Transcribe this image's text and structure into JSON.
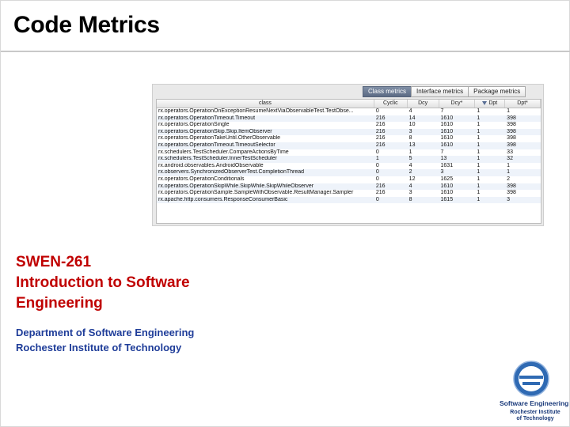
{
  "slide": {
    "title": "Code Metrics",
    "course_lines": [
      "SWEN-261",
      "Introduction to Software",
      "Engineering"
    ],
    "dept_lines": [
      "Department of Software Engineering",
      "Rochester Institute of Technology"
    ]
  },
  "metrics": {
    "tabs": [
      {
        "label": "Class metrics",
        "active": true
      },
      {
        "label": "Interface metrics",
        "active": false
      },
      {
        "label": "Package metrics",
        "active": false
      }
    ],
    "columns": [
      "class",
      "Cyclic",
      "Dcy",
      "Dcy*",
      "Dpt",
      "Dpt*"
    ],
    "sorted_column_icon": "sort-descending-icon",
    "rows": [
      [
        "rx.operators.OperationOnExceptionResumeNextViaObservableTest.TestObse...",
        "0",
        "4",
        "7",
        "1",
        "1"
      ],
      [
        "rx.operators.OperationTimeout.Timeout",
        "216",
        "14",
        "1610",
        "1",
        "398"
      ],
      [
        "rx.operators.OperationSingle",
        "216",
        "10",
        "1610",
        "1",
        "398"
      ],
      [
        "rx.operators.OperationSkip.Skip.ItemObserver",
        "216",
        "3",
        "1610",
        "1",
        "398"
      ],
      [
        "rx.operators.OperationTakeUntil.OtherObservable",
        "216",
        "8",
        "1610",
        "1",
        "398"
      ],
      [
        "rx.operators.OperationTimeout.TimeoutSelector",
        "216",
        "13",
        "1610",
        "1",
        "398"
      ],
      [
        "rx.schedulers.TestScheduler.CompareActionsByTime",
        "0",
        "1",
        "7",
        "1",
        "33"
      ],
      [
        "rx.schedulers.TestScheduler.InnerTestScheduler",
        "1",
        "5",
        "13",
        "1",
        "32"
      ],
      [
        "rx.android.observables.AndroidObservable",
        "0",
        "4",
        "1631",
        "1",
        "1"
      ],
      [
        "rx.observers.SynchronizedObserverTest.CompletionThread",
        "0",
        "2",
        "3",
        "1",
        "1"
      ],
      [
        "rx.operators.OperationConditionals",
        "0",
        "12",
        "1625",
        "1",
        "2"
      ],
      [
        "rx.operators.OperationSkipWhile.SkipWhile.SkipWhileObserver",
        "216",
        "4",
        "1610",
        "1",
        "398"
      ],
      [
        "rx.operators.OperationSample.SampleWithObservable.ResultManager.Sampler",
        "216",
        "3",
        "1610",
        "1",
        "398"
      ],
      [
        "rx.apache.http.consumers.ResponseConsumerBasic",
        "0",
        "8",
        "1615",
        "1",
        "3"
      ]
    ]
  },
  "logo": {
    "icon": "se-logo-icon",
    "line1": "Software Engineering",
    "line2": "Rochester Institute",
    "line3": "of Technology",
    "color": "#1a3a7a"
  }
}
